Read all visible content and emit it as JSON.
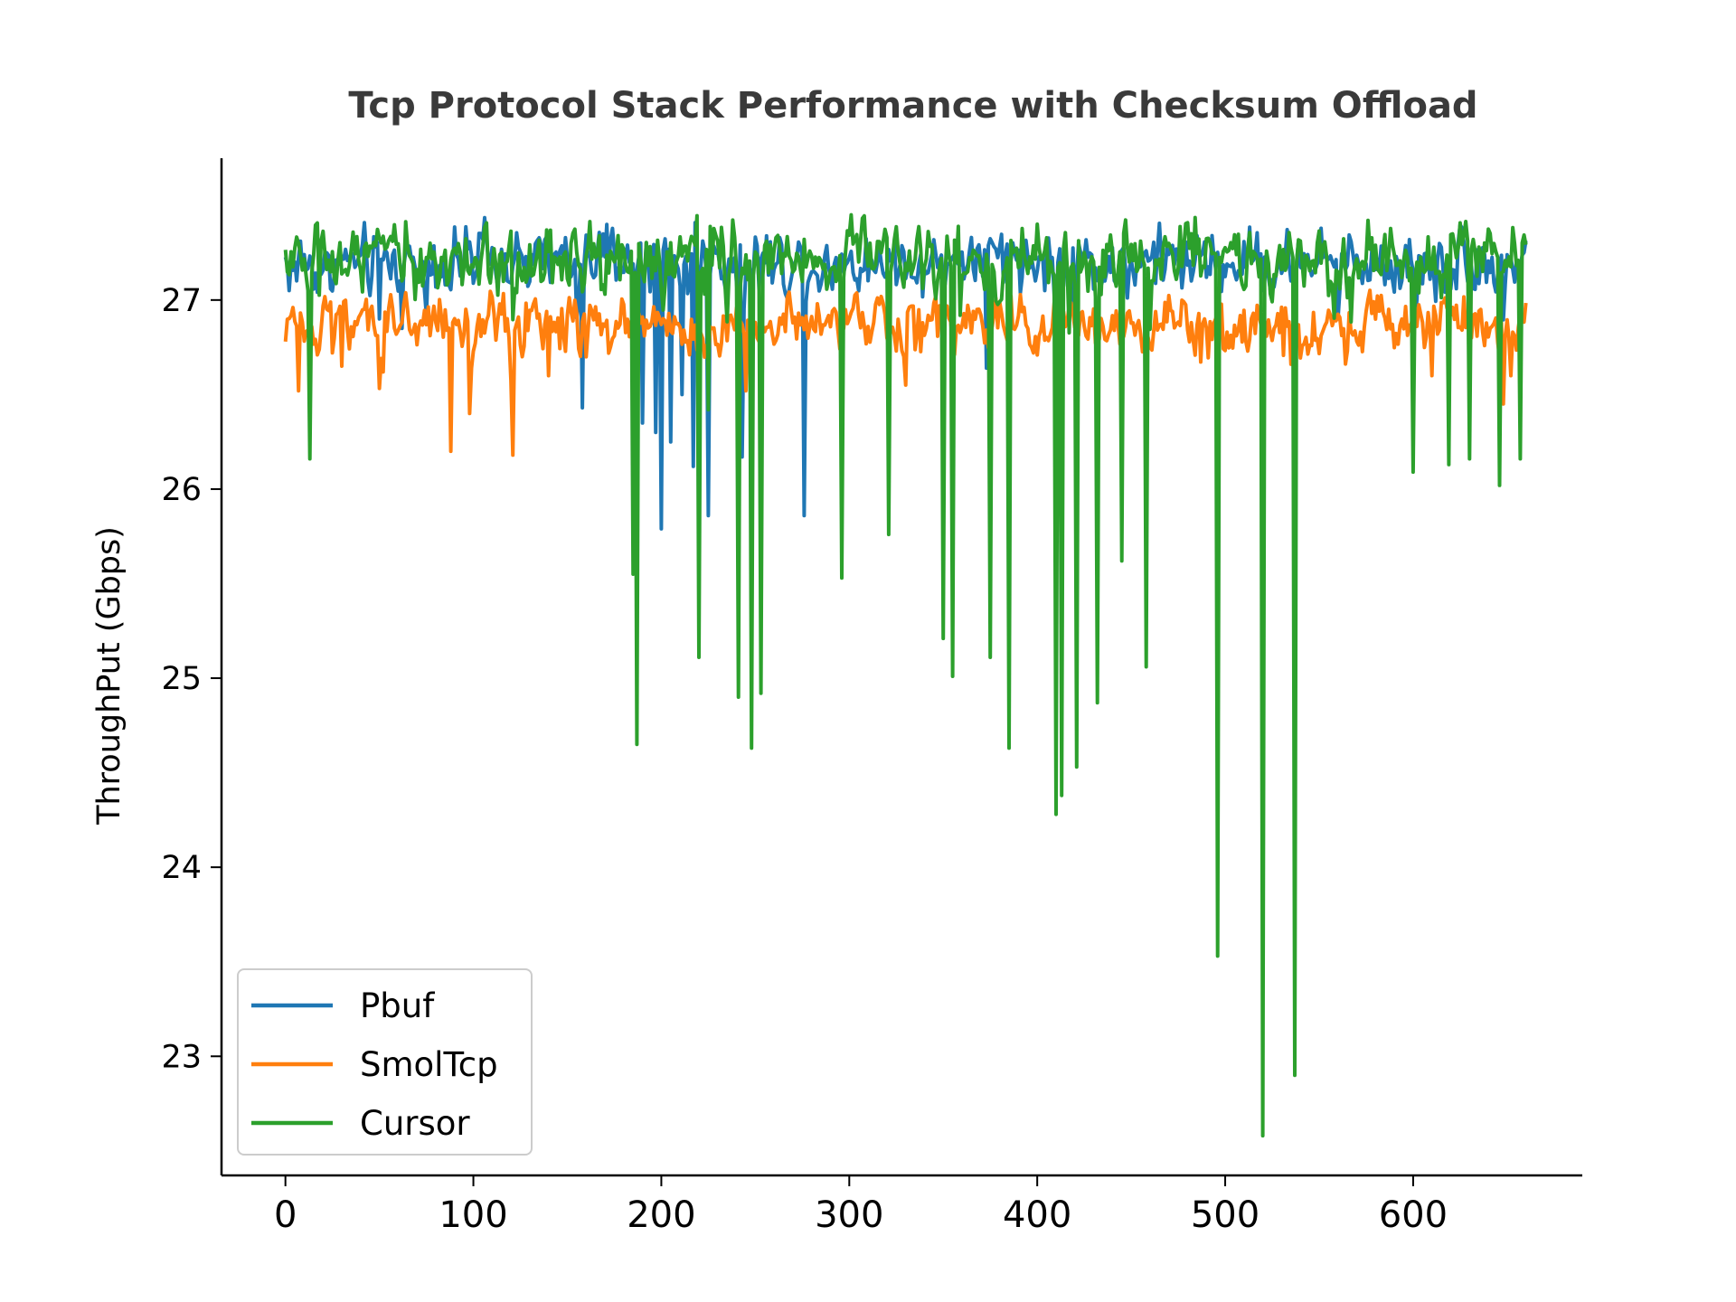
{
  "chart_data": {
    "type": "line",
    "title": "Tcp Protocol Stack Performance with Checksum Offload",
    "xlabel": "",
    "ylabel": "ThroughPut (Gbps)",
    "xlim": [
      -34,
      690
    ],
    "ylim": [
      22.37,
      27.75
    ],
    "xticks": [
      0,
      100,
      200,
      300,
      400,
      500,
      600
    ],
    "yticks": [
      23,
      24,
      25,
      26,
      27
    ],
    "legend_position": "lower-left",
    "grid": false,
    "series": [
      {
        "name": "Pbuf",
        "color": "#1f77b4",
        "baseline": 27.2,
        "noise": 0.12,
        "x_end": 660,
        "dips": [
          [
            2,
            27.05
          ],
          [
            50,
            26.9
          ],
          [
            62,
            26.85
          ],
          [
            158,
            26.43
          ],
          [
            190,
            26.35
          ],
          [
            197,
            26.3
          ],
          [
            200,
            25.79
          ],
          [
            205,
            26.25
          ],
          [
            211,
            26.5
          ],
          [
            217,
            26.12
          ],
          [
            225,
            25.86
          ],
          [
            243,
            26.17
          ],
          [
            276,
            25.86
          ],
          [
            373,
            26.64
          ],
          [
            385,
            26.68
          ],
          [
            410,
            26.72
          ],
          [
            560,
            26.9
          ]
        ]
      },
      {
        "name": "SmolTcp",
        "color": "#ff7f0e",
        "baseline": 26.87,
        "noise": 0.1,
        "x_end": 660,
        "dips": [
          [
            0,
            26.78
          ],
          [
            7,
            26.52
          ],
          [
            30,
            26.65
          ],
          [
            52,
            26.62
          ],
          [
            88,
            26.2
          ],
          [
            98,
            26.4
          ],
          [
            121,
            26.18
          ],
          [
            140,
            26.6
          ],
          [
            160,
            26.7
          ],
          [
            245,
            26.52
          ],
          [
            330,
            26.55
          ],
          [
            395,
            26.85
          ],
          [
            455,
            26.82
          ],
          [
            535,
            26.66
          ],
          [
            610,
            26.6
          ],
          [
            648,
            26.45
          ],
          [
            652,
            26.6
          ]
        ]
      },
      {
        "name": "Cursor",
        "color": "#2ca02c",
        "baseline": 27.22,
        "noise": 0.13,
        "x_end": 660,
        "dips": [
          [
            13,
            26.16
          ],
          [
            185,
            25.55
          ],
          [
            187,
            24.65
          ],
          [
            220,
            25.11
          ],
          [
            225,
            26.42
          ],
          [
            241,
            24.9
          ],
          [
            248,
            24.63
          ],
          [
            253,
            24.92
          ],
          [
            296,
            25.53
          ],
          [
            321,
            25.76
          ],
          [
            350,
            25.21
          ],
          [
            355,
            25.01
          ],
          [
            375,
            25.11
          ],
          [
            385,
            24.63
          ],
          [
            410,
            24.28
          ],
          [
            413,
            24.38
          ],
          [
            421,
            24.53
          ],
          [
            432,
            24.87
          ],
          [
            445,
            25.62
          ],
          [
            458,
            25.06
          ],
          [
            496,
            23.53
          ],
          [
            520,
            22.58
          ],
          [
            537,
            22.9
          ],
          [
            600,
            26.09
          ],
          [
            619,
            26.13
          ],
          [
            630,
            26.16
          ],
          [
            646,
            26.02
          ],
          [
            657,
            26.16
          ]
        ]
      }
    ]
  }
}
